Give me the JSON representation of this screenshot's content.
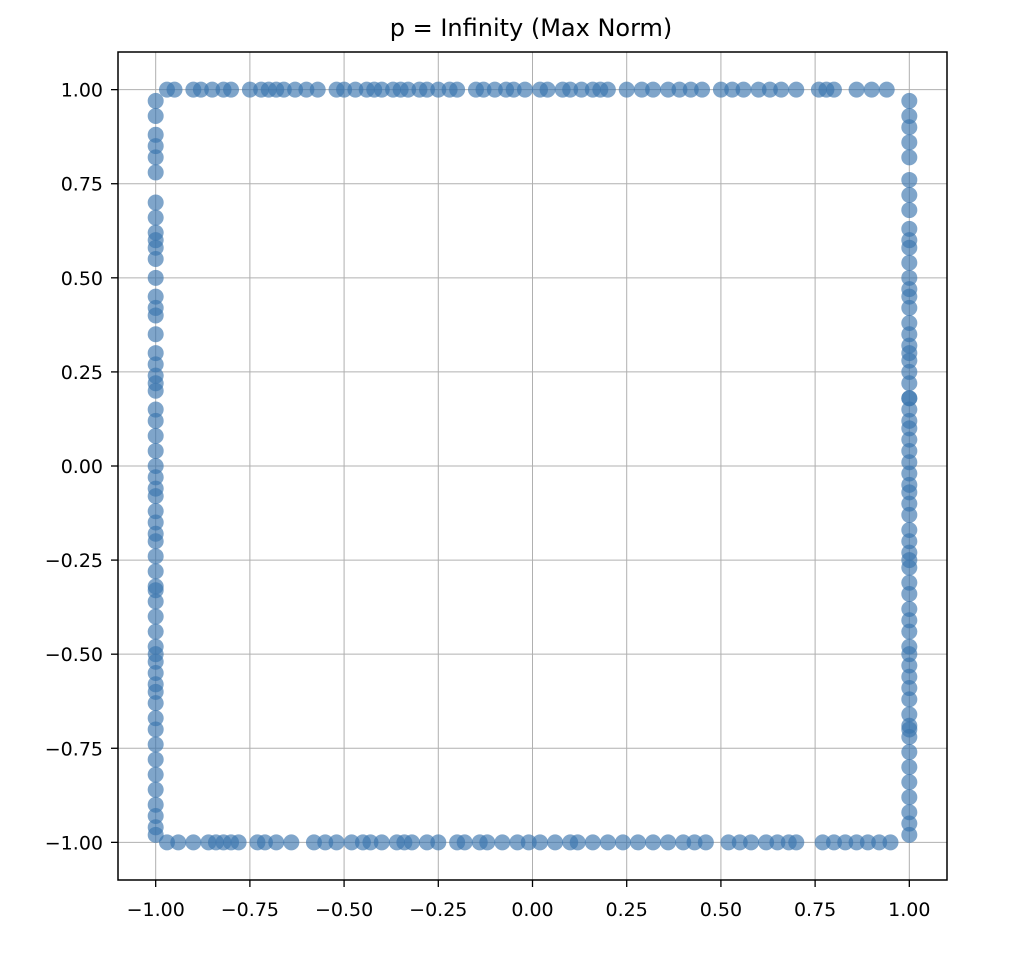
{
  "chart_data": {
    "type": "scatter",
    "title": "p = Infinity (Max Norm)",
    "xlabel": "",
    "ylabel": "",
    "xlim": [
      -1.1,
      1.1
    ],
    "ylim": [
      -1.1,
      1.1
    ],
    "grid": true,
    "marker_color": "#3b74ad",
    "marker_alpha": 0.65,
    "xticks": [
      -1.0,
      -0.75,
      -0.5,
      -0.25,
      0.0,
      0.25,
      0.5,
      0.75,
      1.0
    ],
    "yticks": [
      -1.0,
      -0.75,
      -0.5,
      -0.25,
      0.0,
      0.25,
      0.5,
      0.75,
      1.0
    ],
    "xtick_labels": [
      "−1.00",
      "−0.75",
      "−0.50",
      "−0.25",
      "0.00",
      "0.25",
      "0.50",
      "0.75",
      "1.00"
    ],
    "ytick_labels": [
      "−1.00",
      "−0.75",
      "−0.50",
      "−0.25",
      "0.00",
      "0.25",
      "0.50",
      "0.75",
      "1.00"
    ],
    "series": [
      {
        "x": [
          -0.97,
          -0.95,
          -0.9,
          -0.88,
          -0.85,
          -0.82,
          -0.8,
          -0.75,
          -0.72,
          -0.7,
          -0.68,
          -0.66,
          -0.63,
          -0.6,
          -0.57,
          -0.52,
          -0.5,
          -0.47,
          -0.44,
          -0.42,
          -0.4,
          -0.37,
          -0.35,
          -0.33,
          -0.3,
          -0.28,
          -0.25,
          -0.22,
          -0.2,
          -0.15,
          -0.13,
          -0.1,
          -0.07,
          -0.05,
          -0.02,
          0.02,
          0.04,
          0.08,
          0.1,
          0.13,
          0.16,
          0.18,
          0.2,
          0.25,
          0.29,
          0.32,
          0.36,
          0.39,
          0.42,
          0.45,
          0.5,
          0.53,
          0.56,
          0.6,
          0.63,
          0.66,
          0.7,
          0.76,
          0.78,
          0.8,
          0.86,
          0.9,
          0.94,
          -0.97,
          -0.94,
          -0.9,
          -0.86,
          -0.84,
          -0.82,
          -0.8,
          -0.78,
          -0.73,
          -0.71,
          -0.68,
          -0.64,
          -0.58,
          -0.55,
          -0.52,
          -0.48,
          -0.45,
          -0.43,
          -0.4,
          -0.36,
          -0.34,
          -0.32,
          -0.28,
          -0.25,
          -0.2,
          -0.18,
          -0.14,
          -0.12,
          -0.08,
          -0.04,
          -0.01,
          0.02,
          0.06,
          0.1,
          0.12,
          0.16,
          0.2,
          0.24,
          0.28,
          0.32,
          0.36,
          0.4,
          0.43,
          0.46,
          0.52,
          0.55,
          0.58,
          0.62,
          0.65,
          0.68,
          0.7,
          0.77,
          0.8,
          0.83,
          0.86,
          0.89,
          0.92,
          0.95,
          -1.0,
          -1.0,
          -1.0,
          -1.0,
          -1.0,
          -1.0,
          -1.0,
          -1.0,
          -1.0,
          -1.0,
          -1.0,
          -1.0,
          -1.0,
          -1.0,
          -1.0,
          -1.0,
          -1.0,
          -1.0,
          -1.0,
          -1.0,
          -1.0,
          -1.0,
          -1.0,
          -1.0,
          -1.0,
          -1.0,
          -1.0,
          -1.0,
          -1.0,
          -1.0,
          -1.0,
          -1.0,
          -1.0,
          -1.0,
          -1.0,
          -1.0,
          -1.0,
          -1.0,
          -1.0,
          -1.0,
          -1.0,
          -1.0,
          -1.0,
          -1.0,
          -1.0,
          -1.0,
          -1.0,
          -1.0,
          -1.0,
          -1.0,
          -1.0,
          -1.0,
          -1.0,
          -1.0,
          -1.0,
          -1.0,
          -1.0,
          -1.0,
          1.0,
          1.0,
          1.0,
          1.0,
          1.0,
          1.0,
          1.0,
          1.0,
          1.0,
          1.0,
          1.0,
          1.0,
          1.0,
          1.0,
          1.0,
          1.0,
          1.0,
          1.0,
          1.0,
          1.0,
          1.0,
          1.0,
          1.0,
          1.0,
          1.0,
          1.0,
          1.0,
          1.0,
          1.0,
          1.0,
          1.0,
          1.0,
          1.0,
          1.0,
          1.0,
          1.0,
          1.0,
          1.0,
          1.0,
          1.0,
          1.0,
          1.0,
          1.0,
          1.0,
          1.0,
          1.0,
          1.0,
          1.0,
          1.0,
          1.0,
          1.0,
          1.0,
          1.0,
          1.0,
          1.0,
          1.0,
          1.0,
          1.0,
          1.0,
          1.0,
          1.0,
          1.0,
          1.0
        ],
        "y": [
          1.0,
          1.0,
          1.0,
          1.0,
          1.0,
          1.0,
          1.0,
          1.0,
          1.0,
          1.0,
          1.0,
          1.0,
          1.0,
          1.0,
          1.0,
          1.0,
          1.0,
          1.0,
          1.0,
          1.0,
          1.0,
          1.0,
          1.0,
          1.0,
          1.0,
          1.0,
          1.0,
          1.0,
          1.0,
          1.0,
          1.0,
          1.0,
          1.0,
          1.0,
          1.0,
          1.0,
          1.0,
          1.0,
          1.0,
          1.0,
          1.0,
          1.0,
          1.0,
          1.0,
          1.0,
          1.0,
          1.0,
          1.0,
          1.0,
          1.0,
          1.0,
          1.0,
          1.0,
          1.0,
          1.0,
          1.0,
          1.0,
          1.0,
          1.0,
          1.0,
          1.0,
          1.0,
          1.0,
          -1.0,
          -1.0,
          -1.0,
          -1.0,
          -1.0,
          -1.0,
          -1.0,
          -1.0,
          -1.0,
          -1.0,
          -1.0,
          -1.0,
          -1.0,
          -1.0,
          -1.0,
          -1.0,
          -1.0,
          -1.0,
          -1.0,
          -1.0,
          -1.0,
          -1.0,
          -1.0,
          -1.0,
          -1.0,
          -1.0,
          -1.0,
          -1.0,
          -1.0,
          -1.0,
          -1.0,
          -1.0,
          -1.0,
          -1.0,
          -1.0,
          -1.0,
          -1.0,
          -1.0,
          -1.0,
          -1.0,
          -1.0,
          -1.0,
          -1.0,
          -1.0,
          -1.0,
          -1.0,
          -1.0,
          -1.0,
          -1.0,
          -1.0,
          -1.0,
          -1.0,
          -1.0,
          -1.0,
          -1.0,
          -1.0,
          -1.0,
          -1.0,
          0.97,
          0.93,
          0.88,
          0.85,
          0.82,
          0.78,
          0.7,
          0.66,
          0.62,
          0.58,
          0.55,
          0.5,
          0.45,
          0.4,
          0.35,
          0.3,
          0.27,
          0.24,
          0.2,
          0.15,
          0.12,
          0.08,
          0.04,
          0.0,
          -0.03,
          -0.08,
          -0.12,
          -0.15,
          -0.2,
          -0.24,
          -0.28,
          -0.32,
          -0.36,
          -0.4,
          -0.44,
          -0.48,
          -0.52,
          -0.55,
          -0.6,
          -0.63,
          -0.67,
          -0.7,
          -0.74,
          -0.78,
          -0.82,
          -0.86,
          -0.9,
          -0.93,
          -0.96,
          -0.98,
          0.6,
          0.42,
          0.22,
          -0.06,
          -0.18,
          -0.33,
          -0.5,
          -0.58,
          0.97,
          0.93,
          0.9,
          0.86,
          0.82,
          0.76,
          0.72,
          0.68,
          0.63,
          0.58,
          0.54,
          0.5,
          0.47,
          0.42,
          0.38,
          0.35,
          0.32,
          0.28,
          0.25,
          0.22,
          0.18,
          0.15,
          0.12,
          0.1,
          0.07,
          0.04,
          0.01,
          -0.02,
          -0.05,
          -0.1,
          -0.13,
          -0.17,
          -0.2,
          -0.23,
          -0.27,
          -0.31,
          -0.34,
          -0.38,
          -0.41,
          -0.44,
          -0.5,
          -0.53,
          -0.56,
          -0.59,
          -0.62,
          -0.66,
          -0.69,
          -0.72,
          -0.76,
          -0.8,
          -0.84,
          -0.88,
          -0.92,
          -0.95,
          -0.98,
          0.6,
          0.45,
          0.3,
          0.18,
          -0.07,
          -0.25,
          -0.48,
          -0.7
        ]
      }
    ]
  }
}
